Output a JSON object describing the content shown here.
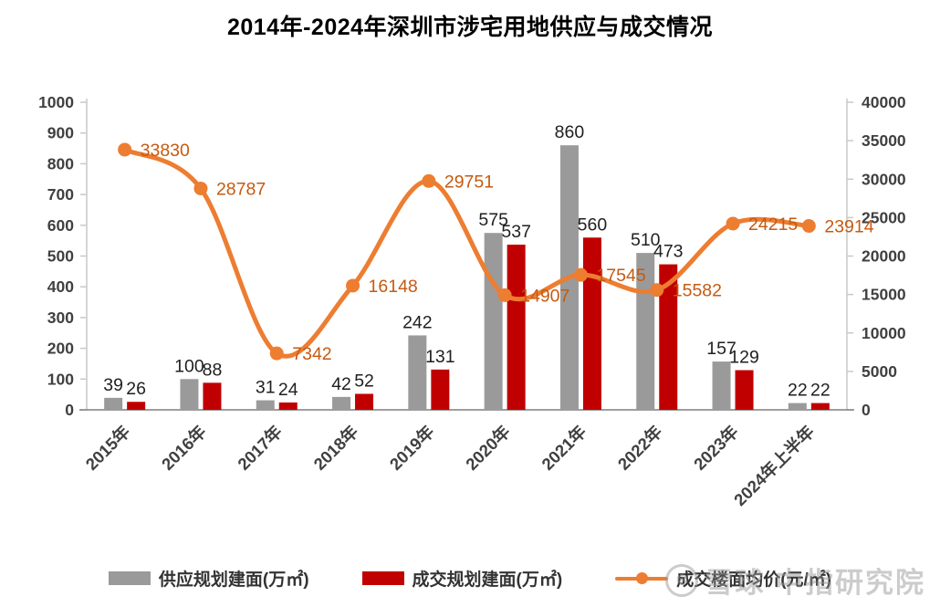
{
  "title": "2014年-2024年深圳市涉宅用地供应与成交情况",
  "watermark": {
    "logo": "snowball-circle-logo",
    "logo_glyph": "❆",
    "text": "雪球 中指研究院"
  },
  "colors": {
    "supply_bar": "#9A9A9A",
    "deal_bar": "#C00000",
    "price_line": "#ED7D31",
    "price_label": "#C55A11",
    "axis_text": "#404040",
    "bar_label": "#1F1F1F",
    "axis_line": "#C9C9C9",
    "baseline": "#7F7F7F"
  },
  "chart_data": {
    "type": "bar+line",
    "title": "2014年-2024年深圳市涉宅用地供应与成交情况",
    "categories": [
      "2015年",
      "2016年",
      "2017年",
      "2018年",
      "2019年",
      "2020年",
      "2021年",
      "2022年",
      "2023年",
      "2024年上半年"
    ],
    "series": [
      {
        "name": "供应规划建面(万㎡)",
        "type": "bar",
        "axis": "left",
        "color": "#9A9A9A",
        "values": [
          39,
          100,
          31,
          42,
          242,
          575,
          860,
          510,
          157,
          22
        ]
      },
      {
        "name": "成交规划建面(万㎡)",
        "type": "bar",
        "axis": "left",
        "color": "#C00000",
        "values": [
          26,
          88,
          24,
          52,
          131,
          537,
          560,
          473,
          129,
          22
        ]
      },
      {
        "name": "成交楼面均价(元/㎡)",
        "type": "line",
        "axis": "right",
        "color": "#ED7D31",
        "label_color": "#C55A11",
        "values": [
          33830,
          28787,
          7342,
          16148,
          29751,
          14907,
          17545,
          15582,
          24215,
          23914
        ]
      }
    ],
    "left_axis": {
      "min": 0,
      "max": 1000,
      "step": 100,
      "ticks": [
        "0",
        "100",
        "200",
        "300",
        "400",
        "500",
        "600",
        "700",
        "800",
        "900",
        "1000"
      ]
    },
    "right_axis": {
      "min": 0,
      "max": 40000,
      "step": 5000,
      "ticks": [
        "0",
        "5000",
        "10000",
        "15000",
        "20000",
        "25000",
        "30000",
        "35000",
        "40000"
      ]
    },
    "grid": false,
    "legend_position": "bottom",
    "xlabel": "",
    "ylabel": ""
  }
}
